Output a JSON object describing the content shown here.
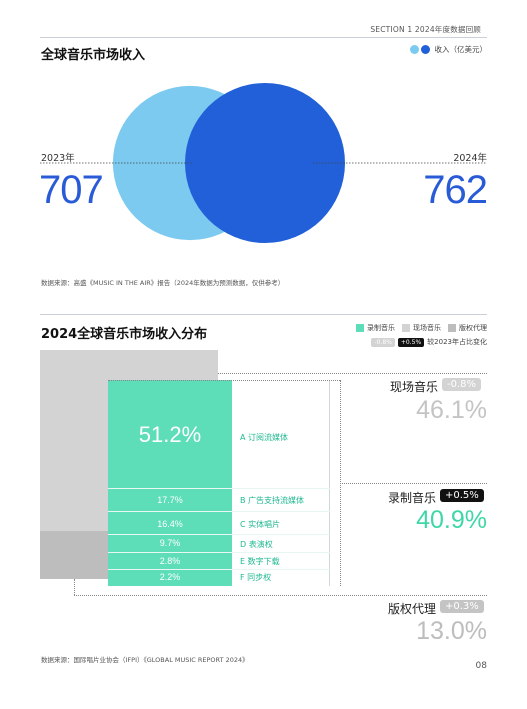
{
  "header": {
    "section": "SECTION 1    2024年度数据回顾"
  },
  "revenue": {
    "title": "全球音乐市场收入",
    "legend_label": "收入（亿美元）",
    "colors": {
      "y2023": "#7dcaf0",
      "y2024": "#2160d8"
    },
    "source": "数据来源：高盛《MUSIC IN THE AIR》报告（2024年数据为预测数据，仅供参考）"
  },
  "chart_data": [
    {
      "type": "bubble",
      "title": "全球音乐市场收入",
      "legend": [
        "收入（亿美元）"
      ],
      "categories": [
        "2023年",
        "2024年"
      ],
      "values": [
        707,
        762
      ],
      "value_labels": [
        "707",
        "762"
      ],
      "unit": "亿美元",
      "colors": [
        "#7dcaf0",
        "#2160d8"
      ]
    },
    {
      "type": "treemap",
      "title": "2024全球音乐市场收入分布",
      "legend": [
        "录制音乐",
        "现场音乐",
        "版权代理"
      ],
      "legend_note": {
        "sample_down": "-0.8%",
        "sample_up": "+0.5%",
        "text": "较2023年占比变化"
      },
      "categories": [
        {
          "name": "现场音乐",
          "share": 46.1,
          "share_label": "46.1%",
          "change": "-0.8%",
          "color": "#d3d3d3"
        },
        {
          "name": "录制音乐",
          "share": 40.9,
          "share_label": "40.9%",
          "change": "+0.5%",
          "color": "#5dddb8"
        },
        {
          "name": "版权代理",
          "share": 13.0,
          "share_label": "13.0%",
          "change": "+0.3%",
          "color": "#bdbdbd"
        }
      ],
      "recorded_breakdown": [
        {
          "name": "A 订阅流媒体",
          "share": 51.2,
          "label": "51.2%"
        },
        {
          "name": "B 广告支持流媒体",
          "share": 17.7,
          "label": "17.7%"
        },
        {
          "name": "C 实体唱片",
          "share": 16.4,
          "label": "16.4%"
        },
        {
          "name": "D 表演权",
          "share": 9.7,
          "label": "9.7%"
        },
        {
          "name": "E 数字下载",
          "share": 2.8,
          "label": "2.8%"
        },
        {
          "name": "F 同步权",
          "share": 2.2,
          "label": "2.2%"
        }
      ],
      "source": "数据来源：国际唱片业协会（IFPI）《GLOBAL MUSIC REPORT 2024》"
    }
  ],
  "page_number": "08"
}
